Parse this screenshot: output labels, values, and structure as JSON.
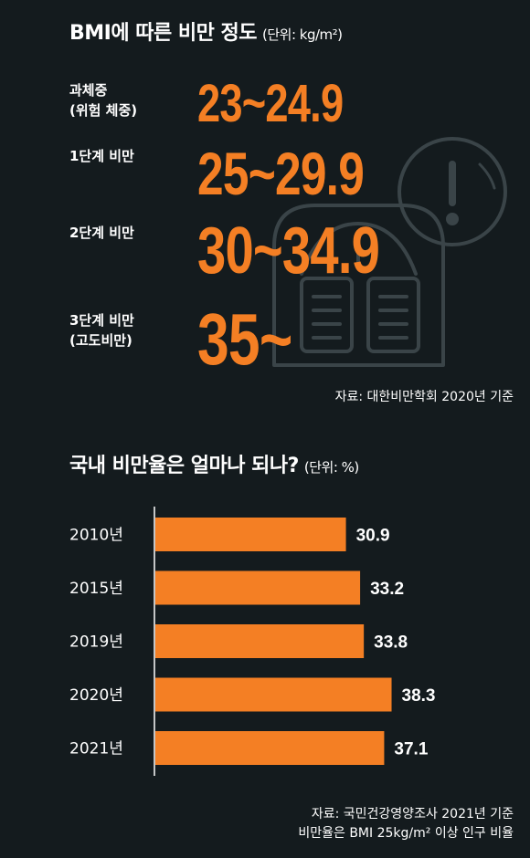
{
  "section1": {
    "title": "BMI에 따른 비만 정도",
    "unit": "(단위: kg/m²)",
    "rows": [
      {
        "label_line1": "과체중",
        "label_line2": "(위험 체중)",
        "value": "23~24.9"
      },
      {
        "label_line1": "1단계 비만",
        "label_line2": "",
        "value": "25~29.9"
      },
      {
        "label_line1": "2단계 비만",
        "label_line2": "",
        "value": "30~34.9"
      },
      {
        "label_line1": "3단계 비만",
        "label_line2": "(고도비만)",
        "value": "35~"
      }
    ],
    "source": "자료: 대한비만학회 2020년 기준"
  },
  "section2": {
    "title": "국내 비만율은 얼마나 되나?",
    "unit": "(단위: %)",
    "source_line1": "자료: 국민건강영양조사 2021년 기준",
    "source_line2": "비만율은 BMI 25kg/m² 이상 인구 비율"
  },
  "colors": {
    "background": "#141b1e",
    "accent": "#f47f24",
    "text": "#ffffff",
    "icon_line": "#3a4448"
  },
  "decor": {
    "icon": "scale-warning-icon"
  },
  "chart_data": {
    "type": "bar",
    "orientation": "horizontal",
    "categories": [
      "2010년",
      "2015년",
      "2019년",
      "2020년",
      "2021년"
    ],
    "values": [
      30.9,
      33.2,
      33.8,
      38.3,
      37.1
    ],
    "value_labels": [
      "30.9",
      "33.2",
      "33.8",
      "38.3",
      "37.1"
    ],
    "title": "국내 비만율은 얼마나 되나?",
    "unit": "%",
    "grid": false
  }
}
